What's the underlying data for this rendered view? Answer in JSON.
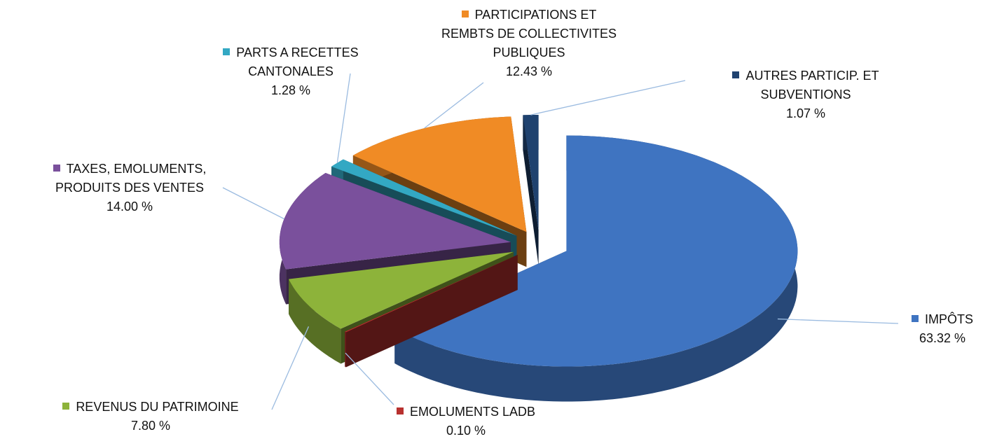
{
  "chart_data": {
    "type": "pie3d",
    "categories": [
      "IMPÔTS",
      "EMOLUMENTS LADB",
      "REVENUS DU PATRIMOINE",
      "TAXES, EMOLUMENTS, PRODUITS DES VENTES",
      "PARTS A RECETTES CANTONALES",
      "PARTICIPATIONS ET REMBTS DE COLLECTIVITES PUBLIQUES",
      "AUTRES PARTICIP. ET SUBVENTIONS"
    ],
    "values": [
      63.32,
      0.1,
      7.8,
      14.0,
      1.28,
      12.43,
      1.07
    ],
    "value_labels": [
      "63.32 %",
      "0.10 %",
      "7.80 %",
      "14.00 %",
      "1.28 %",
      "12.43 %",
      "1.07 %"
    ],
    "colors": [
      "#3f74c1",
      "#b8312f",
      "#8db33a",
      "#7a509c",
      "#33a8c3",
      "#f08b25",
      "#1f426f"
    ]
  }
}
